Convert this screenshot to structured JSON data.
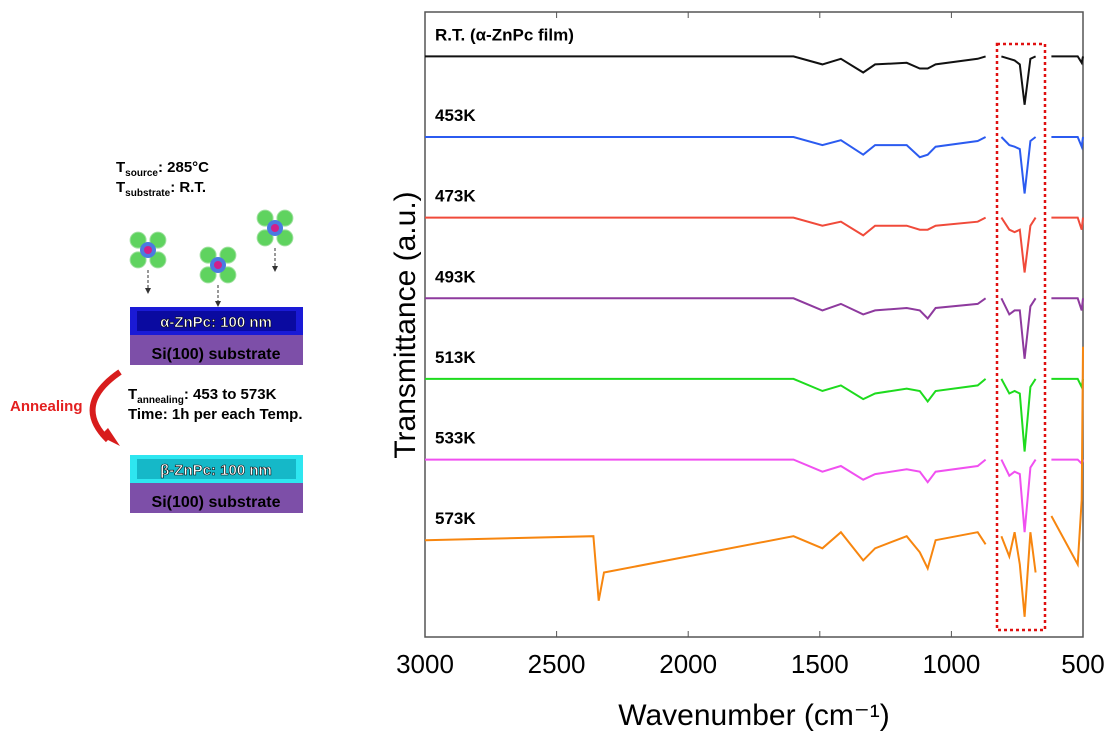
{
  "chart_data": {
    "type": "line",
    "xlabel": "Wavenumber (cm⁻¹)",
    "ylabel": "Transmittance (a.u.)",
    "xlim": [
      3000,
      500
    ],
    "xticks": [
      3000,
      2500,
      2000,
      1500,
      1000,
      500
    ],
    "ylim": [
      -1.2,
      6.55
    ],
    "x": [
      3000,
      2360,
      2340,
      2320,
      1600,
      1490,
      1420,
      1335,
      1290,
      1170,
      1120,
      1090,
      1060,
      900,
      870,
      840,
      810,
      780,
      760,
      740,
      722,
      700,
      680,
      655,
      620,
      520,
      505,
      500
    ],
    "series": [
      {
        "name": "R.T. (α-ZnPc film)",
        "color": "#111111",
        "values": [
          6,
          6,
          6,
          6,
          6,
          5.9,
          5.97,
          5.8,
          5.9,
          5.92,
          5.85,
          5.85,
          5.9,
          5.97,
          6,
          null,
          6,
          5.97,
          5.95,
          5.9,
          5.4,
          5.97,
          6,
          null,
          6,
          6,
          5.92,
          6
        ]
      },
      {
        "name": "453K",
        "color": "#2b5bf0",
        "values": [
          5,
          5,
          5,
          5,
          5,
          4.9,
          4.96,
          4.78,
          4.9,
          4.9,
          4.75,
          4.78,
          4.88,
          4.95,
          5,
          null,
          5,
          4.9,
          4.88,
          4.85,
          4.3,
          4.95,
          5,
          null,
          5,
          5,
          4.88,
          5
        ]
      },
      {
        "name": "473K",
        "color": "#f04a3a",
        "values": [
          4,
          4,
          4,
          4,
          4,
          3.9,
          3.95,
          3.78,
          3.9,
          3.9,
          3.85,
          3.85,
          3.9,
          3.95,
          4,
          null,
          4,
          3.85,
          3.82,
          3.85,
          3.32,
          3.9,
          4,
          null,
          4,
          4,
          3.85,
          4
        ]
      },
      {
        "name": "493K",
        "color": "#8e3a9e",
        "values": [
          3,
          3,
          3,
          3,
          3,
          2.85,
          2.93,
          2.8,
          2.85,
          2.88,
          2.85,
          2.75,
          2.88,
          2.93,
          3,
          null,
          3,
          2.8,
          2.85,
          2.85,
          2.25,
          2.9,
          3,
          null,
          3,
          3,
          2.85,
          3
        ]
      },
      {
        "name": "513K",
        "color": "#1edb1e",
        "values": [
          2,
          2,
          2,
          2,
          2,
          1.85,
          1.92,
          1.75,
          1.82,
          1.88,
          1.85,
          1.72,
          1.85,
          1.92,
          2,
          null,
          2,
          1.82,
          1.85,
          1.82,
          1.1,
          1.9,
          2,
          null,
          2,
          2,
          1.9,
          2
        ]
      },
      {
        "name": "533K",
        "color": "#f050f0",
        "values": [
          1,
          1,
          1,
          1,
          1,
          0.85,
          0.92,
          0.75,
          0.82,
          0.88,
          0.85,
          0.72,
          0.85,
          0.92,
          1,
          null,
          1,
          0.8,
          0.85,
          0.82,
          0.1,
          0.9,
          1,
          null,
          1,
          1,
          0.95,
          1
        ]
      },
      {
        "name": "573K",
        "color": "#f7860f",
        "values": [
          0,
          0.05,
          -0.75,
          -0.4,
          0.05,
          -0.1,
          0.1,
          -0.25,
          -0.1,
          0.05,
          -0.15,
          -0.35,
          0,
          0.1,
          -0.05,
          null,
          0.05,
          -0.2,
          0.1,
          -0.3,
          -0.95,
          0.1,
          -0.4,
          null,
          0.3,
          -0.3,
          0.5,
          2.4
        ]
      }
    ]
  },
  "schematic": {
    "t_letter": "T",
    "source_sub": "source",
    "source_value": ": 285°C",
    "substrate_sub": "substrate",
    "substrate_value": ": R.T.",
    "alpha_layer": "α-ZnPc: 100 nm",
    "si_layer": "Si(100) substrate",
    "annealing": "Annealing",
    "annealing_sub": "annealing",
    "annealing_value": ": 453 to 573K",
    "time": "Time: 1h per each Temp.",
    "beta_layer": "β-ZnPc: 100 nm",
    "si_layer_2": "Si(100) substrate"
  }
}
